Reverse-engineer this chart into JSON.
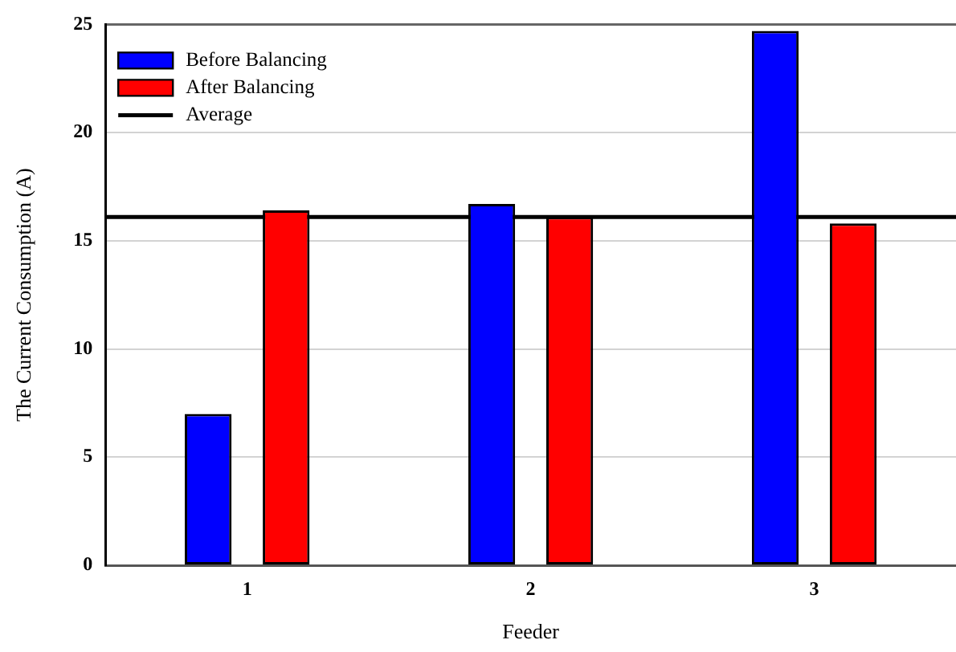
{
  "chart_data": {
    "type": "bar",
    "xlabel": "Feeder",
    "ylabel": "The Current Consumption (A)",
    "categories": [
      "1",
      "2",
      "3"
    ],
    "series": [
      {
        "name": "Before Balancing",
        "color": "#0000ff",
        "values": [
          7.0,
          16.7,
          24.7
        ]
      },
      {
        "name": "After Balancing",
        "color": "#ff0000",
        "values": [
          16.4,
          16.1,
          15.8
        ]
      }
    ],
    "ylim": [
      0,
      25
    ],
    "yticks": [
      0,
      5,
      10,
      15,
      20,
      25
    ],
    "grid": "y",
    "legend": "top left",
    "ref_lines": [
      {
        "axis": "y",
        "value": 16.1,
        "label": "Average",
        "color": "#000000"
      }
    ]
  }
}
